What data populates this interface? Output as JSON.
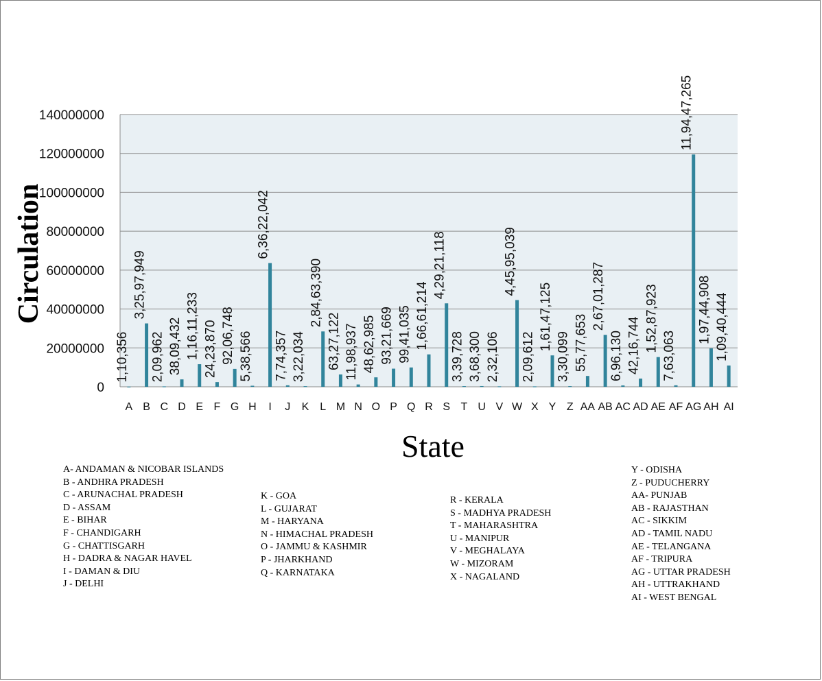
{
  "chart_data": {
    "type": "bar",
    "title": "",
    "xlabel": "State",
    "ylabel": "Circulation",
    "ylim": [
      0,
      140000000
    ],
    "yticks": [
      "0",
      "20000000",
      "40000000",
      "60000000",
      "80000000",
      "100000000",
      "120000000",
      "140000000"
    ],
    "grid": true,
    "bar_color": "#31849b",
    "plot_background": "#e9f0f4",
    "categories": [
      "A",
      "B",
      "C",
      "D",
      "E",
      "F",
      "G",
      "H",
      "I",
      "J",
      "K",
      "L",
      "M",
      "N",
      "O",
      "P",
      "Q",
      "R",
      "S",
      "T",
      "U",
      "V",
      "W",
      "X",
      "Y",
      "Z",
      "AA",
      "AB",
      "AC",
      "AD",
      "AE",
      "AF",
      "AG",
      "AH",
      "AI"
    ],
    "values": [
      110356,
      32597949,
      209962,
      3809432,
      11611233,
      2423870,
      9206748,
      538566,
      63622042,
      774357,
      322034,
      28463390,
      6327122,
      1198937,
      4862985,
      9321669,
      9941035,
      16661214,
      42921118,
      339728,
      368300,
      232106,
      44595039,
      209612,
      16147125,
      330099,
      5577653,
      26701287,
      696130,
      4216744,
      15287923,
      763063,
      119447265,
      19744908,
      10940444
    ],
    "data_labels": [
      "1,10,356",
      "3,25,97,949",
      "2,09,962",
      "38,09,432",
      "1,16,11,233",
      "24,23,870",
      "92,06,748",
      "5,38,566",
      "6,36,22,042",
      "7,74,357",
      "3,22,034",
      "2,84,63,390",
      "63,27,122",
      "11,98,937",
      "48,62,985",
      "93,21,669",
      "99,41,035",
      "1,66,61,214",
      "4,29,21,118",
      "3,39,728",
      "3,68,300",
      "2,32,106",
      "4,45,95,039",
      "2,09,612",
      "1,61,47,125",
      "3,30,099",
      "55,77,653",
      "2,67,01,287",
      "6,96,130",
      "42,16,744",
      "1,52,87,923",
      "7,63,063",
      "11,94,47,265",
      "1,97,44,908",
      "1,09,40,444"
    ]
  },
  "legend": {
    "col1": [
      "A- ANDAMAN & NICOBAR ISLANDS",
      "B - ANDHRA PRADESH",
      "C - ARUNACHAL PRADESH",
      "D - ASSAM",
      "E - BIHAR",
      "F - CHANDIGARH",
      "G - CHATTISGARH",
      "H - DADRA & NAGAR HAVEL",
      "I - DAMAN & DIU",
      "J - DELHI"
    ],
    "col2": [
      "K - GOA",
      "L - GUJARAT",
      "M - HARYANA",
      "N - HIMACHAL PRADESH",
      "O - JAMMU & KASHMIR",
      "P - JHARKHAND",
      "Q - KARNATAKA"
    ],
    "col3": [
      "R - KERALA",
      "S - MADHYA PRADESH",
      "T - MAHARASHTRA",
      "U - MANIPUR",
      "V - MEGHALAYA",
      "W - MIZORAM",
      "X - NAGALAND"
    ],
    "col4": [
      "Y - ODISHA",
      "Z - PUDUCHERRY",
      "AA- PUNJAB",
      "AB - RAJASTHAN",
      "AC - SIKKIM",
      "AD - TAMIL NADU",
      "AE - TELANGANA",
      "AF - TRIPURA",
      "AG - UTTAR PRADESH",
      "AH - UTTRAKHAND",
      "AI - WEST BENGAL"
    ]
  }
}
